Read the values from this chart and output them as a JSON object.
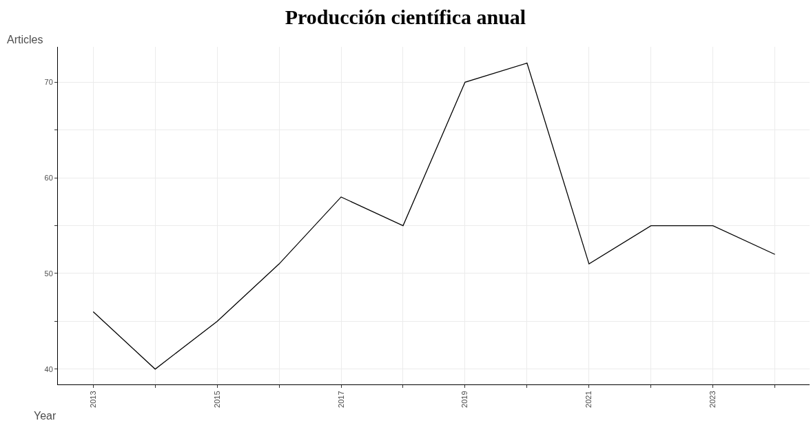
{
  "chart_data": {
    "type": "line",
    "title": "Producción científica anual",
    "xlabel": "Year",
    "ylabel": "Articles",
    "x": [
      2013,
      2014,
      2015,
      2016,
      2017,
      2018,
      2019,
      2020,
      2021,
      2022,
      2023,
      2024
    ],
    "series": [
      {
        "color": "#000000",
        "values": [
          46,
          40,
          45,
          51,
          58,
          55,
          70,
          72,
          51,
          55,
          55,
          52
        ]
      }
    ],
    "xlim": [
      2012.43,
      2024.56
    ],
    "xticks": [
      2013,
      {
        "value": 2014,
        "label": null
      },
      2015,
      {
        "value": 2016,
        "label": null
      },
      2017,
      {
        "value": 2018,
        "label": null
      },
      2019,
      {
        "value": 2020,
        "label": null
      },
      2021,
      {
        "value": 2022,
        "label": null
      },
      2023,
      {
        "value": 2024,
        "label": null
      }
    ],
    "ylim": [
      38.4,
      73.7
    ],
    "yticks": [
      40,
      {
        "value": 45,
        "label": null
      },
      50,
      {
        "value": 55,
        "label": null
      },
      60,
      {
        "value": 65,
        "label": null
      },
      70
    ],
    "grid": true,
    "marker": "none",
    "line_style": "solid"
  }
}
